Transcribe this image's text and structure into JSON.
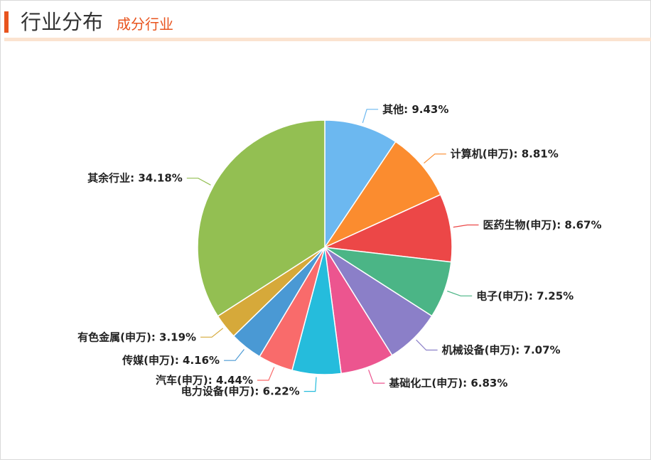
{
  "header": {
    "title": "行业分布",
    "subtitle": "成分行业"
  },
  "colors": {
    "accent": "#e8541e",
    "divider": "#fbe3d0"
  },
  "chart_data": {
    "type": "pie",
    "unit": "%",
    "legend": "none",
    "slices": [
      {
        "label": "其他",
        "value": 9.43,
        "color": "#6cb8f0"
      },
      {
        "label": "计算机(申万)",
        "value": 8.81,
        "color": "#fb8c2f"
      },
      {
        "label": "医药生物(申万)",
        "value": 8.67,
        "color": "#ec4747"
      },
      {
        "label": "电子(申万)",
        "value": 7.25,
        "color": "#4bb586"
      },
      {
        "label": "机械设备(申万)",
        "value": 7.07,
        "color": "#8b7fc8"
      },
      {
        "label": "基础化工(申万)",
        "value": 6.83,
        "color": "#ec558f"
      },
      {
        "label": "电力设备(申万)",
        "value": 6.22,
        "color": "#25bcdc"
      },
      {
        "label": "汽车(申万)",
        "value": 4.44,
        "color": "#f96b6b"
      },
      {
        "label": "传媒(申万)",
        "value": 4.16,
        "color": "#4a99d4"
      },
      {
        "label": "有色金属(申万)",
        "value": 3.19,
        "color": "#d6a93a"
      },
      {
        "label": "其余行业",
        "value": 34.18,
        "color": "#93bf52"
      }
    ]
  }
}
